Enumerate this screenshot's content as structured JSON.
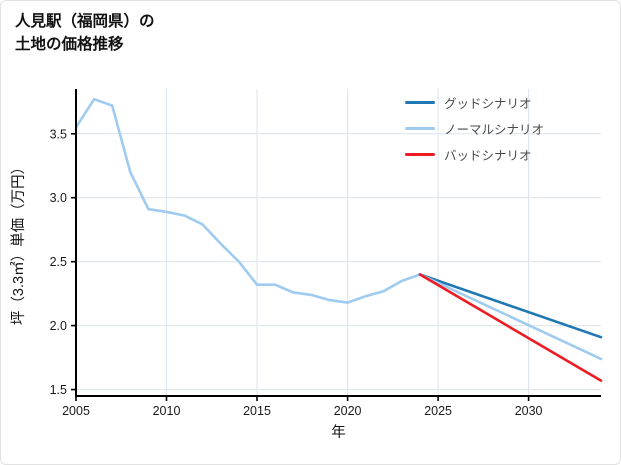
{
  "header": {
    "title_line1": "人見駅（福岡県）の",
    "title_line2": "土地の価格推移"
  },
  "chart_data": {
    "type": "line",
    "title": "人見駅（福岡県）の土地の価格推移",
    "xlabel": "年",
    "ylabel": "坪（3.3㎡）単価（万円）",
    "xlim": [
      2005,
      2034
    ],
    "ylim": [
      1.45,
      3.85
    ],
    "xticks": [
      2005,
      2010,
      2015,
      2020,
      2025,
      2030
    ],
    "xtick_labels": [
      "2005",
      "2010",
      "2015",
      "2020",
      "2025",
      "2030"
    ],
    "yticks": [
      1.5,
      2.0,
      2.5,
      3.0,
      3.5
    ],
    "ytick_labels": [
      "1.5",
      "2.0",
      "2.5",
      "3.0",
      "3.5"
    ],
    "grid": true,
    "grid_color": "#dce4ec",
    "axis_color": "#000000",
    "tick_label_color": "#1a1a1a",
    "legend_position": "upper right",
    "legend": [
      {
        "label": "グッドシナリオ",
        "color": "#1f77b4"
      },
      {
        "label": "ノーマルシナリオ",
        "color": "#9fcbf1"
      },
      {
        "label": "バッドシナリオ",
        "color": "#ed1c24"
      }
    ],
    "series": [
      {
        "key": "historical-price",
        "color": "#9fcbf1",
        "x": [
          2005,
          2006,
          2007,
          2008,
          2009,
          2010,
          2011,
          2012,
          2013,
          2014,
          2015,
          2016,
          2017,
          2018,
          2019,
          2020,
          2021,
          2022,
          2023,
          2024
        ],
        "values": [
          3.55,
          3.77,
          3.72,
          3.2,
          2.91,
          2.89,
          2.86,
          2.79,
          2.64,
          2.5,
          2.32,
          2.32,
          2.26,
          2.24,
          2.2,
          2.18,
          2.23,
          2.27,
          2.35,
          2.4
        ]
      },
      {
        "key": "good-scenario",
        "color": "#1f77b4",
        "x": [
          2024,
          2034
        ],
        "values": [
          2.4,
          1.91
        ]
      },
      {
        "key": "normal-scenario",
        "color": "#9fcbf1",
        "x": [
          2024,
          2034
        ],
        "values": [
          2.4,
          1.74
        ]
      },
      {
        "key": "bad-scenario",
        "color": "#ed1c24",
        "x": [
          2024,
          2034
        ],
        "values": [
          2.4,
          1.57
        ]
      }
    ]
  }
}
